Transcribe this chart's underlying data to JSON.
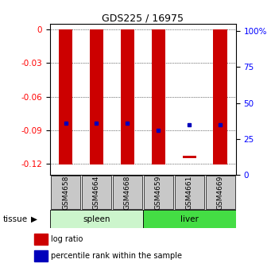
{
  "title": "GDS225 / 16975",
  "samples": [
    "GSM4658",
    "GSM4664",
    "GSM4668",
    "GSM4659",
    "GSM4661",
    "GSM4669"
  ],
  "groups": [
    "spleen",
    "spleen",
    "spleen",
    "liver",
    "liver",
    "liver"
  ],
  "log_ratios": [
    -0.121,
    -0.121,
    -0.121,
    -0.121,
    -0.115,
    -0.121
  ],
  "bar_top": [
    0,
    0,
    0,
    0,
    -0.113,
    0
  ],
  "percentile_ranks": [
    36,
    36,
    36,
    31,
    35,
    35
  ],
  "ylim_left": [
    -0.13,
    0.005
  ],
  "ylim_right": [
    0,
    105
  ],
  "yticks_left": [
    0,
    -0.03,
    -0.06,
    -0.09,
    -0.12
  ],
  "yticks_right": [
    0,
    25,
    50,
    75,
    100
  ],
  "bar_color": "#CC0000",
  "dot_color": "#0000BB",
  "bar_width": 0.45,
  "background_color": "#ffffff",
  "tissue_label": "tissue",
  "spleen_color": "#ccf5cc",
  "liver_color": "#44dd44",
  "legend_logratio": "log ratio",
  "legend_percentile": "percentile rank within the sample",
  "sample_box_color": "#c8c8c8"
}
